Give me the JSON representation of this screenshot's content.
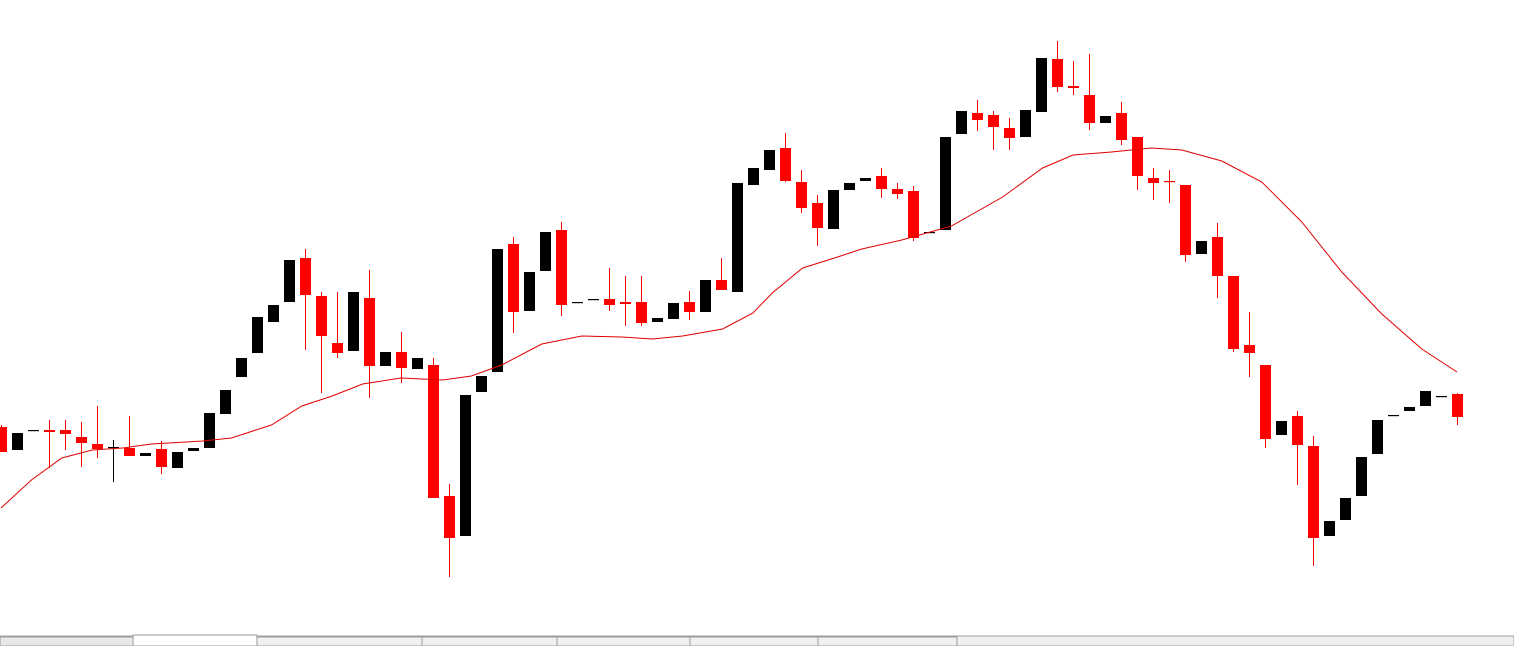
{
  "chart_data": {
    "type": "candlestick",
    "up_color": "#000000",
    "down_color": "#ff0000",
    "xlim": [
      -0.0625,
      94.5625
    ],
    "ylim": [
      0,
      646
    ],
    "open": [
      219,
      196,
      216,
      216,
      216,
      209,
      202,
      198,
      198,
      190,
      197,
      178,
      195,
      198,
      232,
      269,
      293,
      324,
      344,
      388,
      350,
      303,
      295,
      348,
      280,
      294,
      277,
      281,
      150,
      110,
      254,
      274,
      402,
      335,
      375,
      416,
      344,
      347,
      347,
      344,
      344,
      324,
      327,
      344,
      334,
      366,
      354,
      461,
      476,
      498,
      464,
      443,
      417,
      456,
      465,
      470,
      457,
      455,
      414,
      416,
      512,
      533,
      531,
      518,
      509,
      534,
      587,
      560,
      551,
      523,
      533,
      509,
      468,
      465,
      461,
      392,
      409,
      370,
      301,
      281,
      211,
      230,
      200,
      110,
      126,
      150,
      192,
      231,
      235,
      240,
      250,
      252
    ],
    "high": [
      221,
      213,
      216,
      226,
      226,
      224,
      240,
      206,
      230,
      193,
      205,
      194,
      198,
      233,
      256,
      288,
      329,
      341,
      386,
      397,
      354,
      354,
      354,
      376,
      294,
      314,
      288,
      288,
      162,
      251,
      270,
      397,
      409,
      374,
      414,
      424,
      344,
      347,
      378,
      370,
      370,
      328,
      343,
      355,
      366,
      388,
      463,
      478,
      496,
      513,
      476,
      451,
      456,
      463,
      468,
      478,
      463,
      460,
      414,
      509,
      535,
      546,
      535,
      528,
      536,
      588,
      605,
      585,
      592,
      530,
      544,
      509,
      478,
      476,
      461,
      405,
      423,
      370,
      334,
      281,
      225,
      235,
      210,
      125,
      148,
      189,
      226,
      231,
      239,
      255,
      250,
      253
    ],
    "low": [
      194,
      196,
      216,
      178,
      196,
      179,
      188,
      164,
      190,
      190,
      172,
      178,
      195,
      198,
      232,
      269,
      293,
      324,
      344,
      296,
      253,
      288,
      295,
      248,
      280,
      263,
      277,
      148,
      69,
      110,
      254,
      274,
      313,
      335,
      375,
      330,
      344,
      347,
      335,
      320,
      320,
      324,
      327,
      326,
      334,
      356,
      354,
      461,
      476,
      464,
      433,
      400,
      417,
      456,
      465,
      448,
      447,
      405,
      414,
      416,
      512,
      515,
      496,
      496,
      509,
      534,
      554,
      551,
      516,
      523,
      501,
      456,
      446,
      443,
      384,
      392,
      348,
      294,
      269,
      198,
      211,
      161,
      80,
      110,
      126,
      150,
      192,
      231,
      235,
      240,
      250,
      221
    ],
    "close": [
      194,
      213,
      216,
      214,
      212,
      203,
      197,
      199,
      190,
      193,
      179,
      194,
      198,
      233,
      256,
      288,
      329,
      341,
      386,
      351,
      310,
      293,
      354,
      280,
      294,
      278,
      288,
      148,
      108,
      251,
      270,
      397,
      334,
      374,
      414,
      341,
      344,
      347,
      341,
      342,
      323,
      328,
      343,
      334,
      366,
      356,
      463,
      478,
      496,
      465,
      438,
      418,
      456,
      463,
      468,
      457,
      452,
      408,
      414,
      509,
      535,
      526,
      519,
      508,
      536,
      588,
      559,
      558,
      523,
      530,
      506,
      470,
      463,
      464,
      391,
      405,
      370,
      297,
      293,
      207,
      225,
      201,
      108,
      125,
      148,
      189,
      226,
      231,
      239,
      255,
      250,
      229
    ],
    "moving_average": {
      "color": "#e00000",
      "x": [
        0,
        1.9,
        3.8,
        5.7,
        7.6,
        9.4,
        12.6,
        14.4,
        16.9,
        18.8,
        20.7,
        22.6,
        25,
        27.6,
        29.4,
        31.3,
        33.8,
        36.3,
        38.8,
        40.7,
        42.6,
        45.1,
        47,
        48.2,
        50.1,
        51.9,
        53.8,
        56.3,
        59.4,
        62.6,
        65.1,
        67,
        69.4,
        71.9,
        73.8,
        76.3,
        78.8,
        81.3,
        83.8,
        86.3,
        88.8,
        91
      ],
      "values": [
        138,
        166,
        188,
        196,
        198,
        202,
        205,
        208,
        221,
        240,
        250,
        262,
        268,
        266,
        270,
        281,
        302,
        310,
        309,
        307,
        310,
        317,
        333,
        353,
        378,
        387,
        397,
        406,
        420,
        449,
        478,
        491,
        494,
        498,
        496,
        485,
        464,
        424,
        374,
        332,
        297,
        274
      ]
    }
  }
}
